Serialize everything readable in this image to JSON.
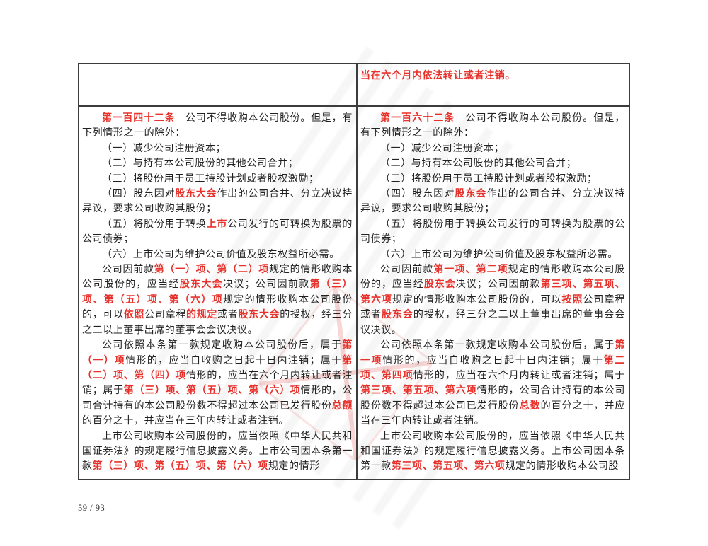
{
  "colors": {
    "changed_text_red": "#e8312b",
    "body_text": "#212121",
    "table_border": "#3c3c3c"
  },
  "footer": {
    "page_indicator": "59 / 93"
  },
  "comparison_table": {
    "row_carryover": {
      "left_cell_paragraphs": [],
      "right_cell_paragraphs": [
        {
          "indent": false,
          "runs": [
            {
              "t": "当在六个月内依法转让或者注销。",
              "red": true
            }
          ]
        }
      ]
    },
    "row_articles": {
      "left_cell_paragraphs": [
        {
          "runs": [
            {
              "t": "第一百四十二条",
              "red": true
            },
            {
              "t": "　公司不得收购本公司股份。但是，有下列情形之一的除外："
            }
          ]
        },
        {
          "runs": [
            {
              "t": "（一）减少公司注册资本；"
            }
          ]
        },
        {
          "runs": [
            {
              "t": "（二）与持有本公司股份的其他公司合并；"
            }
          ]
        },
        {
          "runs": [
            {
              "t": "（三）将股份用于员工持股计划或者股权激励；"
            }
          ]
        },
        {
          "runs": [
            {
              "t": "（四）股东因对"
            },
            {
              "t": "股东大会",
              "red": true
            },
            {
              "t": "作出的公司合并、分立决议持异议，要求公司收购其股份；"
            }
          ]
        },
        {
          "runs": [
            {
              "t": "（五）将股份用于转换"
            },
            {
              "t": "上市",
              "red": true
            },
            {
              "t": "公司发行的可转换为股票的公司债券；"
            }
          ]
        },
        {
          "runs": [
            {
              "t": "（六）上市公司为维护公司价值及股东权益所必需。"
            }
          ]
        },
        {
          "runs": [
            {
              "t": "公司因前款"
            },
            {
              "t": "第（一）项、第（二）项",
              "red": true
            },
            {
              "t": "规定的情形收购本公司股份的，应当经"
            },
            {
              "t": "股东大会",
              "red": true
            },
            {
              "t": "决议；公司因前款"
            },
            {
              "t": "第（三）项、第（五）项、第（六）项",
              "red": true
            },
            {
              "t": "规定的情形收购本公司股份的，可以"
            },
            {
              "t": "依照",
              "red": true
            },
            {
              "t": "公司章程"
            },
            {
              "t": "的规定",
              "red": true
            },
            {
              "t": "或者"
            },
            {
              "t": "股东大会",
              "red": true
            },
            {
              "t": "的授权，经三分之二以上董事出席的董事会会议决议。"
            }
          ]
        },
        {
          "runs": [
            {
              "t": "公司依照本条第一款规定收购本公司股份后，属于"
            },
            {
              "t": "第（一）项",
              "red": true
            },
            {
              "t": "情形的，应当自收购之日起十日内注销；属于"
            },
            {
              "t": "第（二）项、第（四）项",
              "red": true
            },
            {
              "t": "情形的，应当在六个月内转让或者注销；属于"
            },
            {
              "t": "第（三）项、第（五）项、第（六）项",
              "red": true
            },
            {
              "t": "情形的，公司合计持有的本公司股份数不得超过本公司已发行股份"
            },
            {
              "t": "总额",
              "red": true
            },
            {
              "t": "的百分之十，并应当在三年内转让或者注销。"
            }
          ]
        },
        {
          "runs": [
            {
              "t": "上市公司收购本公司股份的，应当依照《中华人民共和国证券法》的规定履行信息披露义务。上市公司因本条第一款"
            },
            {
              "t": "第（三）项、第（五）项、第（六）项",
              "red": true
            },
            {
              "t": "规定的情形"
            }
          ]
        }
      ],
      "right_cell_paragraphs": [
        {
          "runs": [
            {
              "t": "第一百六十二条",
              "red": true
            },
            {
              "t": "　公司不得收购本公司股份。但是，有下列情形之一的除外："
            }
          ]
        },
        {
          "runs": [
            {
              "t": "（一）减少公司注册资本；"
            }
          ]
        },
        {
          "runs": [
            {
              "t": "（二）与持有本公司股份的其他公司合并；"
            }
          ]
        },
        {
          "runs": [
            {
              "t": "（三）将股份用于员工持股计划或者股权激励；"
            }
          ]
        },
        {
          "runs": [
            {
              "t": "（四）股东因对"
            },
            {
              "t": "股东会",
              "red": true
            },
            {
              "t": "作出的公司合并、分立决议持异议，要求公司收购其股份；"
            }
          ]
        },
        {
          "runs": [
            {
              "t": "（五）将股份用于转换公司发行的可转换为股票的公司债券；"
            }
          ]
        },
        {
          "runs": [
            {
              "t": "（六）上市公司为维护公司价值及股东权益所必需。"
            }
          ]
        },
        {
          "runs": [
            {
              "t": "公司因前款"
            },
            {
              "t": "第一项、第二项",
              "red": true
            },
            {
              "t": "规定的情形收购本公司股份的，应当经"
            },
            {
              "t": "股东会",
              "red": true
            },
            {
              "t": "决议；公司因前款"
            },
            {
              "t": "第三项、第五项、第六项",
              "red": true
            },
            {
              "t": "规定的情形收购本公司股份的，可以"
            },
            {
              "t": "按照",
              "red": true
            },
            {
              "t": "公司章程或者"
            },
            {
              "t": "股东会",
              "red": true
            },
            {
              "t": "的授权，经三分之二以上董事出席的董事会会议决议。"
            }
          ]
        },
        {
          "runs": [
            {
              "t": "公司依照本条第一款规定收购本公司股份后，属于"
            },
            {
              "t": "第一项",
              "red": true
            },
            {
              "t": "情形的，应当自收购之日起十日内注销；属于"
            },
            {
              "t": "第二项、第四项",
              "red": true
            },
            {
              "t": "情形的，应当在六个月内转让或者注销；属于"
            },
            {
              "t": "第三项、第五项、第六项",
              "red": true
            },
            {
              "t": "情形的，公司合计持有的本公司股份数不得超过本公司已发行股份"
            },
            {
              "t": "总数",
              "red": true
            },
            {
              "t": "的百分之十，并应当在三年内转让或者注销。"
            }
          ]
        },
        {
          "runs": [
            {
              "t": "上市公司收购本公司股份的，应当依照《中华人民共和国证券法》的规定履行信息披露义务。上市公司因本条第一款"
            },
            {
              "t": "第三项、第五项、第六项",
              "red": true
            },
            {
              "t": "规定的情形收购本公司股"
            }
          ]
        }
      ]
    }
  }
}
